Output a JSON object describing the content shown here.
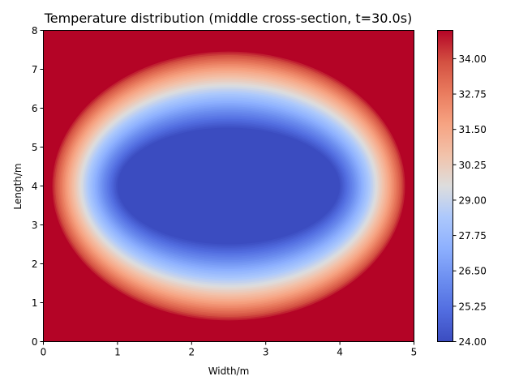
{
  "chart_data": {
    "type": "heatmap",
    "title": "Temperature distribution (middle cross-section, t=30.0s)",
    "xlabel": "Width/m",
    "ylabel": "Length/m",
    "xlim": [
      0,
      5
    ],
    "ylim": [
      0,
      8
    ],
    "x_ticks": [
      "0",
      "1",
      "2",
      "3",
      "4",
      "5"
    ],
    "y_ticks": [
      "0",
      "1",
      "2",
      "3",
      "4",
      "5",
      "6",
      "7",
      "8"
    ],
    "grid": false,
    "colormap": "coolwarm",
    "colorbar": {
      "min": 24.0,
      "max": 35.0,
      "ticks": [
        "24.00",
        "25.25",
        "26.50",
        "27.75",
        "29.00",
        "30.25",
        "31.50",
        "32.75",
        "34.00"
      ]
    },
    "field": {
      "boundary_temperature": 35.0,
      "center_temperature": 24.0,
      "center": [
        2.5,
        4.0
      ],
      "cold_core_extent": [
        1.5,
        1.5
      ],
      "boundary_layer": [
        0.1,
        0.5
      ]
    }
  }
}
